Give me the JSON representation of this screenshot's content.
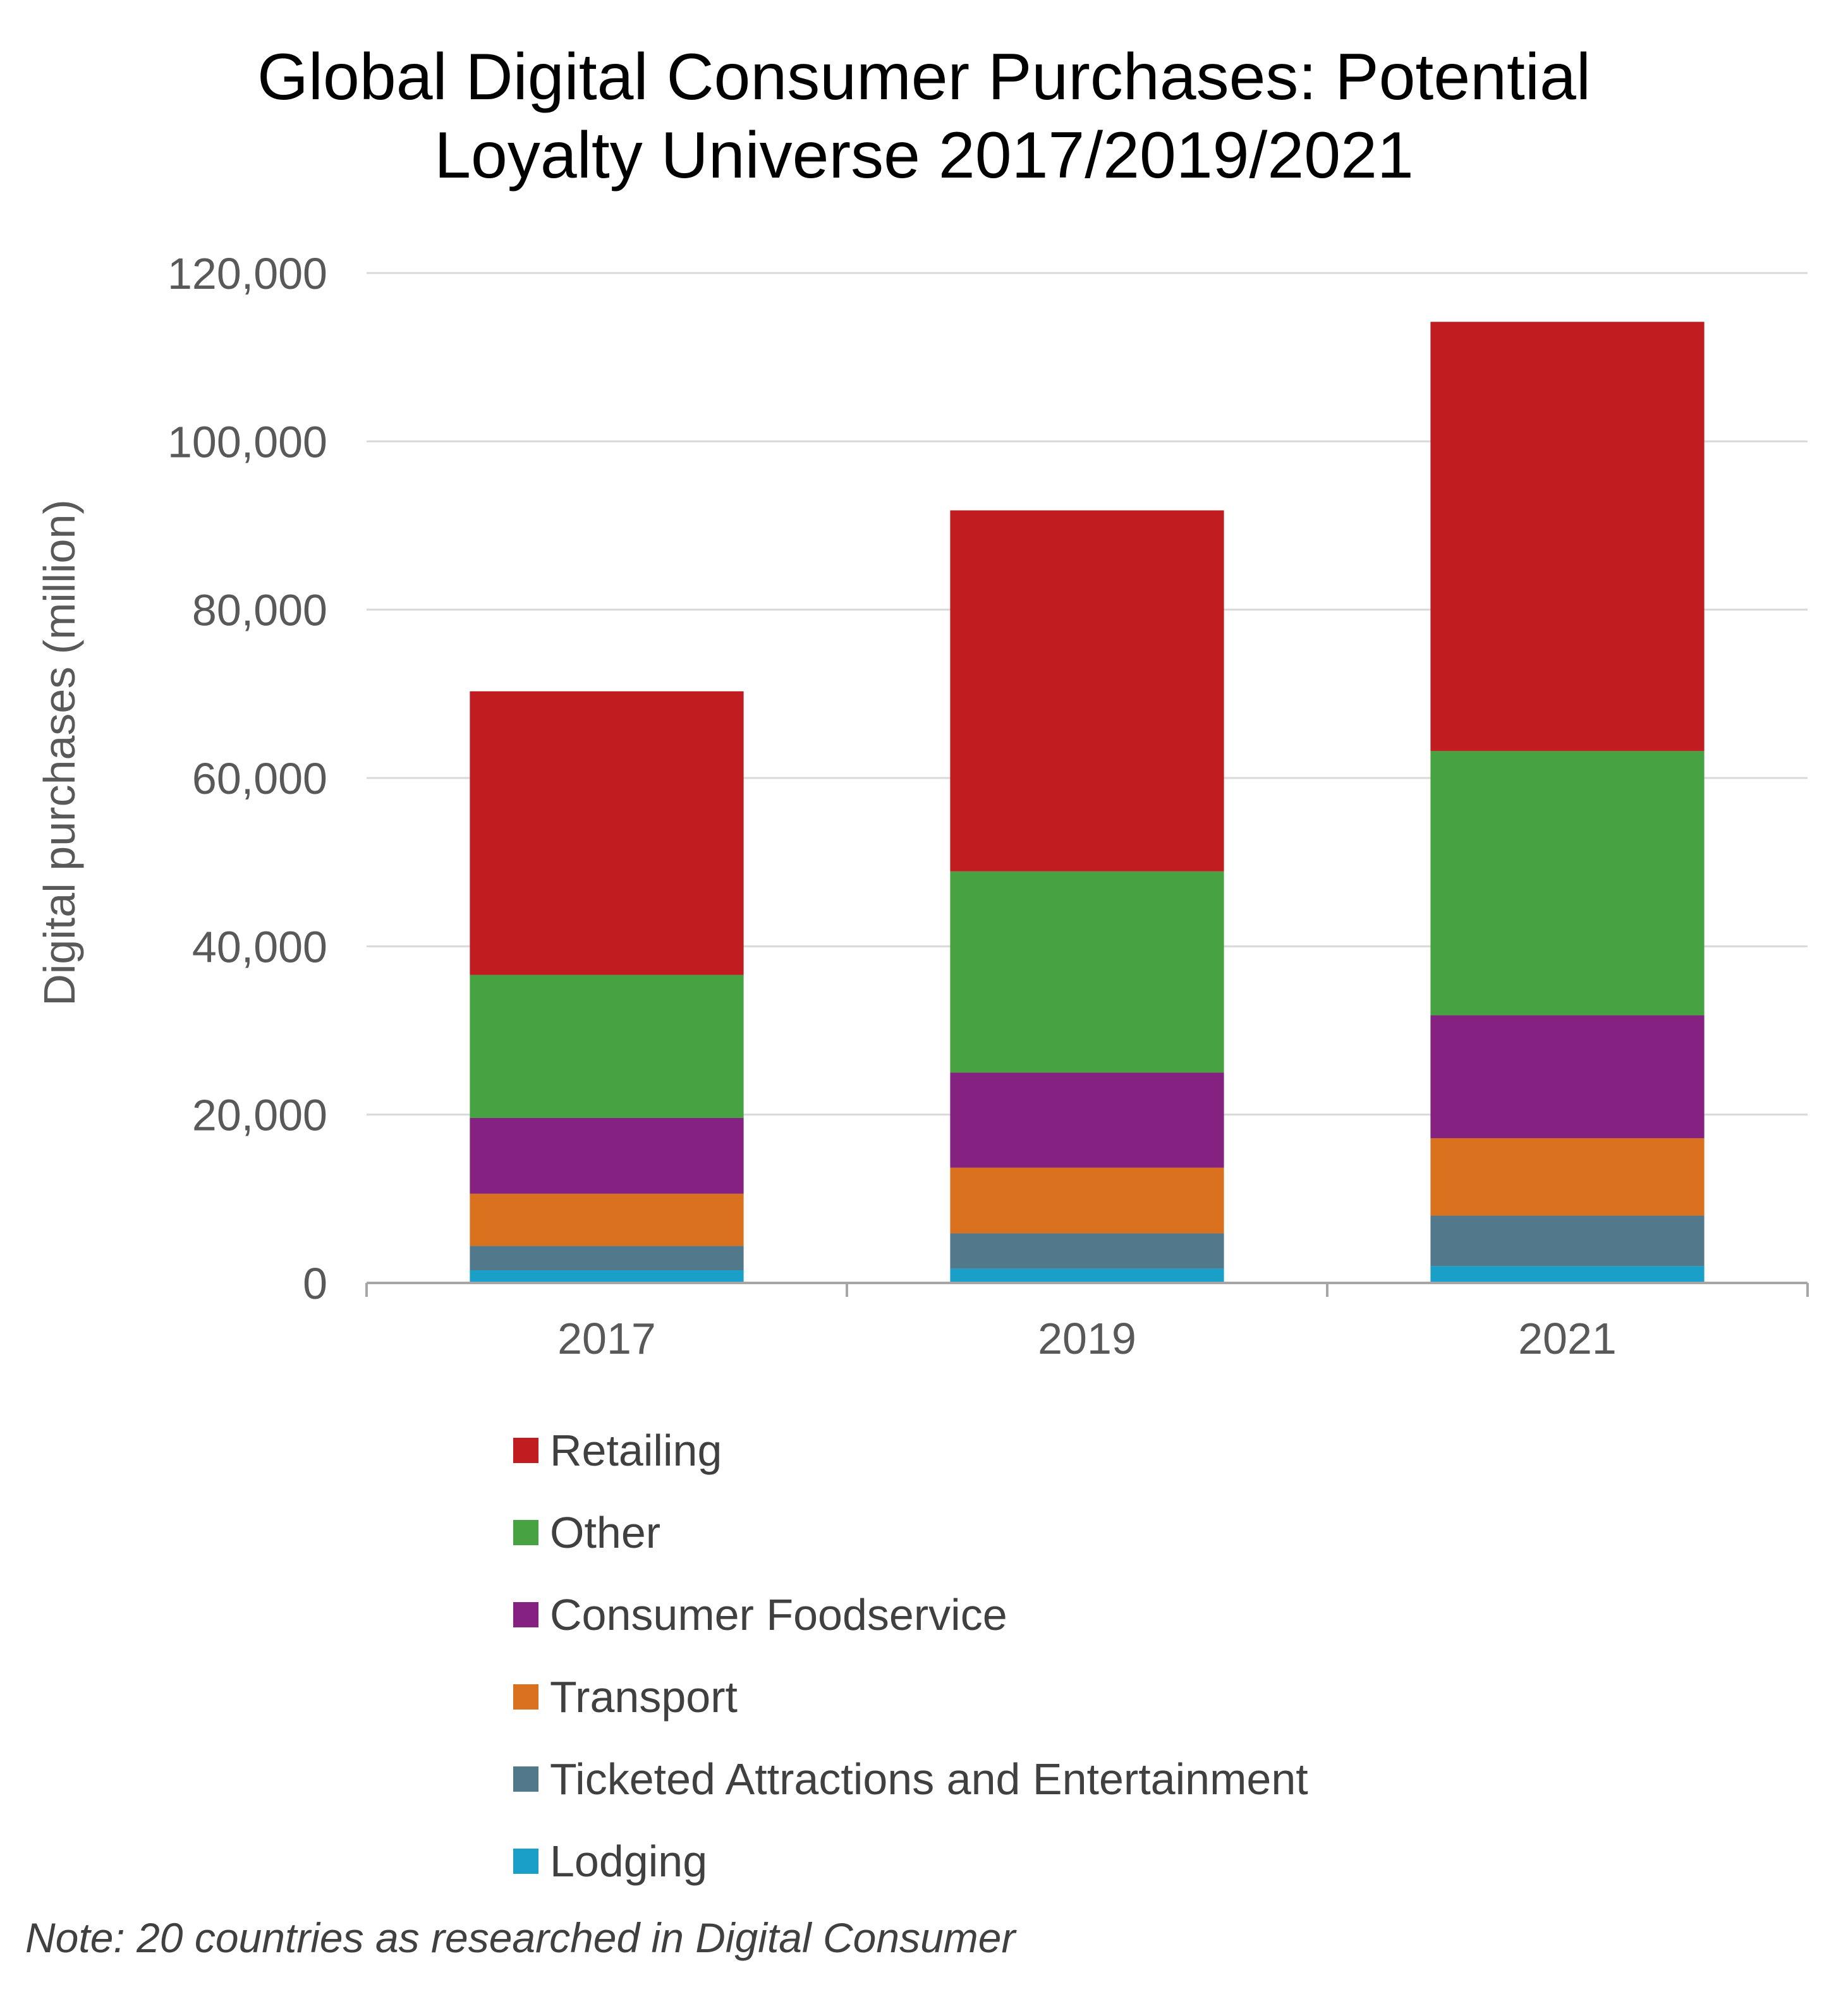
{
  "chart_data": {
    "type": "bar",
    "stacked": true,
    "title_lines": [
      "Global Digital Consumer Purchases: Potential",
      "Loyalty Universe 2017/2019/2021"
    ],
    "xlabel": "",
    "ylabel": "Digital purchases (million)",
    "ylim": [
      0,
      120000
    ],
    "yticks": [
      0,
      20000,
      40000,
      60000,
      80000,
      100000,
      120000
    ],
    "ytick_labels": [
      "0",
      "20,000",
      "40,000",
      "60,000",
      "80,000",
      "100,000",
      "120,000"
    ],
    "categories": [
      "2017",
      "2019",
      "2021"
    ],
    "grid": true,
    "legend_position": "bottom",
    "series": [
      {
        "name": "Lodging",
        "color": "#1aa0c8",
        "values": [
          1500,
          1700,
          2000
        ]
      },
      {
        "name": "Ticketed Attractions and Entertainment",
        "color": "#52788c",
        "values": [
          2900,
          4200,
          6000
        ]
      },
      {
        "name": "Transport",
        "color": "#d9711f",
        "values": [
          6200,
          7800,
          9200
        ]
      },
      {
        "name": "Consumer Foodservice",
        "color": "#842181",
        "values": [
          9000,
          11300,
          14600
        ]
      },
      {
        "name": "Other",
        "color": "#47a341",
        "values": [
          17000,
          23900,
          31400
        ]
      },
      {
        "name": "Retailing",
        "color": "#c11d21",
        "values": [
          33700,
          42900,
          51000
        ]
      }
    ]
  },
  "legend_order": [
    "Retailing",
    "Other",
    "Consumer Foodservice",
    "Transport",
    "Ticketed Attractions and Entertainment",
    "Lodging"
  ],
  "note": "Note: 20 countries as researched in Digital Consumer"
}
